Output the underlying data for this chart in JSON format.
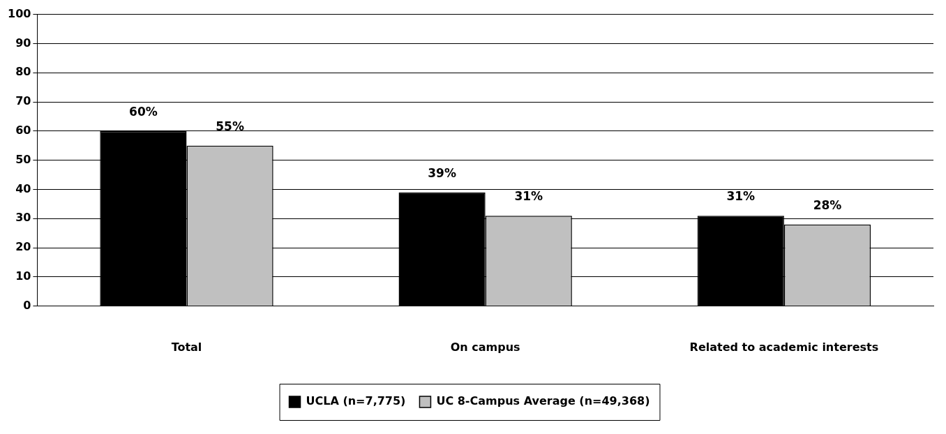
{
  "chart_data": {
    "type": "bar",
    "categories": [
      "Total",
      "On campus",
      "Related to academic interests"
    ],
    "series": [
      {
        "name": "UCLA (n=7,775)",
        "color": "#000000",
        "values": [
          60,
          39,
          31
        ],
        "value_labels": [
          "60%",
          "39%",
          "31%"
        ]
      },
      {
        "name": "UC 8-Campus Average (n=49,368)",
        "color": "#c0c0c0",
        "values": [
          55,
          31,
          28
        ],
        "value_labels": [
          "55%",
          "31%",
          "28%"
        ]
      }
    ],
    "ylim": [
      0,
      100
    ],
    "yticks": [
      0,
      10,
      20,
      30,
      40,
      50,
      60,
      70,
      80,
      90,
      100
    ],
    "grid": "y",
    "legend": "bottom"
  }
}
